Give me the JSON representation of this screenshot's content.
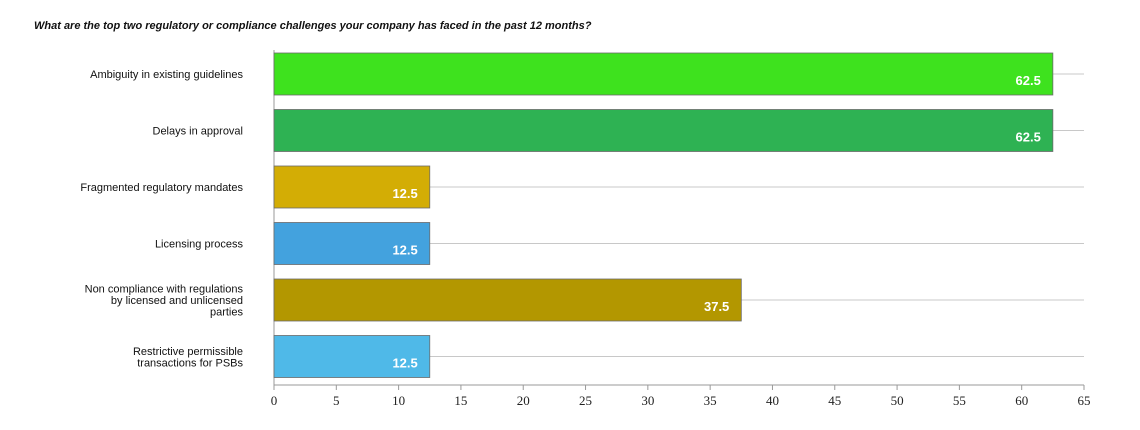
{
  "chart_data": {
    "type": "bar",
    "orientation": "horizontal",
    "title": "What are the top two regulatory or compliance challenges your company has faced in the past 12 months?",
    "xlabel": "",
    "ylabel": "",
    "xlim": [
      0,
      65
    ],
    "ticks": [
      0,
      5,
      10,
      15,
      20,
      25,
      30,
      35,
      40,
      45,
      50,
      55,
      60,
      65
    ],
    "grid": true,
    "categories": [
      [
        "Ambiguity in existing guidelines"
      ],
      [
        "Delays in approval"
      ],
      [
        "Fragmented regulatory mandates"
      ],
      [
        "Licensing process"
      ],
      [
        "Non compliance with regulations",
        "by licensed and unlicensed",
        "parties"
      ],
      [
        "Restrictive permissible",
        "transactions for PSBs"
      ]
    ],
    "values": [
      62.5,
      62.5,
      12.5,
      12.5,
      37.5,
      12.5
    ],
    "value_labels": [
      "62.5",
      "62.5",
      "12.5",
      "12.5",
      "37.5",
      "12.5"
    ],
    "colors": [
      "#3ee21e",
      "#2eb253",
      "#d3ad05",
      "#43a2de",
      "#b39700",
      "#4fb9e8"
    ]
  }
}
